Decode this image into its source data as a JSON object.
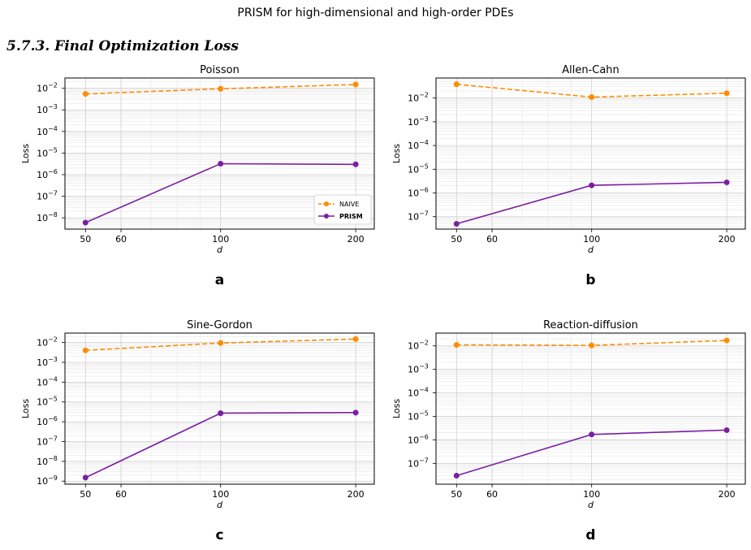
{
  "page": {
    "header": "PRISM for high-dimensional and high-order PDEs",
    "section": "5.7.3. Final Optimization Loss"
  },
  "colors": {
    "naive": "#ff8c00",
    "prism": "#7b1fa2"
  },
  "chart_data": [
    {
      "type": "line",
      "title": "Poisson",
      "panel_label": "a",
      "xlabel": "d",
      "ylabel": "Loss",
      "x_scale": "log",
      "y_scale": "log",
      "x": [
        50,
        100,
        200
      ],
      "x_ticks": [
        "50",
        "60",
        "100",
        "200"
      ],
      "xlim": [
        45,
        220
      ],
      "ylim": [
        3e-09,
        0.03
      ],
      "y_tick_exponents": [
        -8,
        -7,
        -6,
        -5,
        -4,
        -3,
        -2
      ],
      "grid": true,
      "legend": "bottom-right",
      "series": [
        {
          "name": "NAIVE",
          "values": [
            0.0055,
            0.0095,
            0.015
          ]
        },
        {
          "name": "PRISM",
          "values": [
            6e-09,
            3.2e-06,
            3e-06
          ]
        }
      ]
    },
    {
      "type": "line",
      "title": "Allen-Cahn",
      "panel_label": "b",
      "xlabel": "d",
      "ylabel": "Loss",
      "x_scale": "log",
      "y_scale": "log",
      "x": [
        50,
        100,
        200
      ],
      "x_ticks": [
        "50",
        "60",
        "100",
        "200"
      ],
      "xlim": [
        45,
        220
      ],
      "ylim": [
        3e-08,
        0.07
      ],
      "y_tick_exponents": [
        -7,
        -6,
        -5,
        -4,
        -3,
        -2
      ],
      "grid": true,
      "series": [
        {
          "name": "NAIVE",
          "values": [
            0.038,
            0.011,
            0.016
          ]
        },
        {
          "name": "PRISM",
          "values": [
            5e-08,
            2.1e-06,
            2.8e-06
          ]
        }
      ]
    },
    {
      "type": "line",
      "title": "Sine-Gordon",
      "panel_label": "c",
      "xlabel": "d",
      "ylabel": "Loss",
      "x_scale": "log",
      "y_scale": "log",
      "x": [
        50,
        100,
        200
      ],
      "x_ticks": [
        "50",
        "60",
        "100",
        "200"
      ],
      "xlim": [
        45,
        220
      ],
      "ylim": [
        7e-10,
        0.03
      ],
      "y_tick_exponents": [
        -9,
        -8,
        -7,
        -6,
        -5,
        -4,
        -3,
        -2
      ],
      "grid": true,
      "series": [
        {
          "name": "NAIVE",
          "values": [
            0.004,
            0.0095,
            0.015
          ]
        },
        {
          "name": "PRISM",
          "values": [
            1.5e-09,
            2.7e-06,
            2.9e-06
          ]
        }
      ]
    },
    {
      "type": "line",
      "title": "Reaction-diffusion",
      "panel_label": "d",
      "xlabel": "d",
      "ylabel": "Loss",
      "x_scale": "log",
      "y_scale": "log",
      "x": [
        50,
        100,
        200
      ],
      "x_ticks": [
        "50",
        "60",
        "100",
        "200"
      ],
      "xlim": [
        45,
        220
      ],
      "ylim": [
        1.3e-08,
        0.035
      ],
      "y_tick_exponents": [
        -7,
        -6,
        -5,
        -4,
        -3,
        -2
      ],
      "grid": true,
      "series": [
        {
          "name": "NAIVE",
          "values": [
            0.011,
            0.0105,
            0.017
          ]
        },
        {
          "name": "PRISM",
          "values": [
            3e-08,
            1.7e-06,
            2.6e-06
          ]
        }
      ]
    }
  ]
}
